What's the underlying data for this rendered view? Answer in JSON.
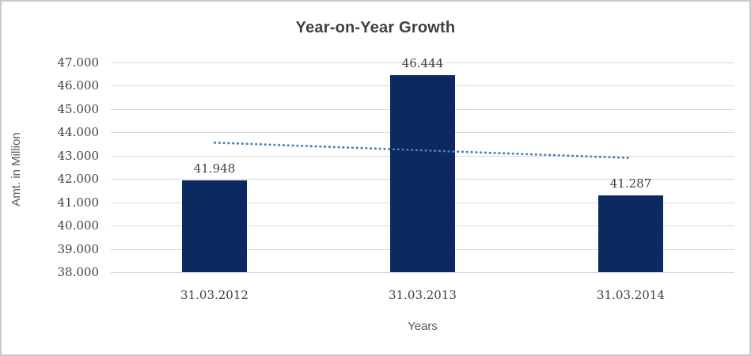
{
  "chart_data": {
    "type": "bar",
    "title": "Year-on-Year Growth",
    "xlabel": "Years",
    "ylabel": "Amt. in Million",
    "categories": [
      "31.03.2012",
      "31.03.2013",
      "31.03.2014"
    ],
    "series": [
      {
        "name": "Amt. in Million",
        "values": [
          41.948,
          46.444,
          41.287
        ],
        "data_labels": [
          "41.948",
          "46.444",
          "41.287"
        ]
      }
    ],
    "ylim": [
      38,
      47
    ],
    "ytick_step": 1,
    "ytick_labels": [
      "47.000",
      "46.000",
      "45.000",
      "44.000",
      "43.000",
      "42.000",
      "41.000",
      "40.000",
      "39.000",
      "38.000"
    ],
    "grid": "horizontal",
    "legend": "none",
    "trendline": {
      "type": "linear",
      "style": "dotted",
      "start_value": 43.56,
      "end_value": 42.9
    },
    "colors": {
      "bar_fill": "#0c2a60",
      "trendline": "#4a7ebb",
      "gridline": "#d9d9d9",
      "title_text": "#404040",
      "tick_text": "#3f3f3f",
      "axis_title_text": "#595959",
      "frame_border": "#c9c9c9",
      "background": "#ffffff"
    }
  }
}
